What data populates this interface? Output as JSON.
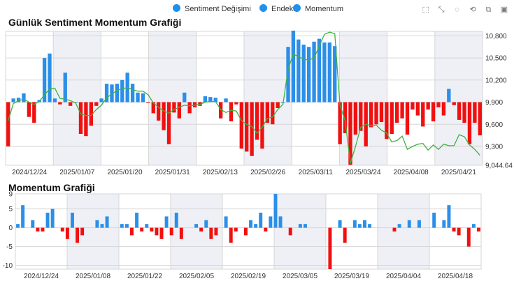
{
  "legend": {
    "items": [
      {
        "label": "Sentiment Değişimi",
        "color": "#1e90ee"
      },
      {
        "label": "Endeks",
        "color": "#1e90ee"
      },
      {
        "label": "Momentum",
        "color": "#1e90ee"
      }
    ]
  },
  "toolbox": {
    "icons": [
      "zoom-select-icon",
      "zoom-reset-icon",
      "brush-rect-icon",
      "brush-polygon-icon",
      "data-view-icon",
      "save-image-icon"
    ]
  },
  "colors": {
    "positive": "#2b8fe8",
    "negative": "#f01010",
    "line": "#3cb43c",
    "band": "#eef0f6",
    "grid": "#d6d6d6"
  },
  "chart_data": [
    {
      "type": "bar",
      "title": "Günlük Sentiment Momentum Grafiği",
      "x_tick_labels": [
        "2024/12/24",
        "2025/01/07",
        "2025/01/20",
        "2025/01/31",
        "2025/02/13",
        "2025/02/26",
        "2025/03/11",
        "2025/03/24",
        "2025/04/08",
        "2025/04/21"
      ],
      "y_tick_labels": [
        "10,800",
        "10,500",
        "10,200",
        "9,900",
        "9,600",
        "9,300",
        "9,044.64"
      ],
      "ylim": [
        9044.64,
        10860
      ],
      "baseline": 9900,
      "grid": true,
      "legend_position": "top",
      "series": [
        {
          "name": "Endeks",
          "type": "bar",
          "values": [
            9300,
            9950,
            9960,
            10020,
            9700,
            9620,
            9930,
            10500,
            10560,
            9950,
            9870,
            10300,
            9850,
            9900,
            9470,
            9440,
            9580,
            9850,
            9950,
            10150,
            10140,
            10150,
            10200,
            10300,
            10150,
            10030,
            10020,
            9890,
            9750,
            9650,
            9520,
            9330,
            9760,
            9680,
            10030,
            9750,
            9830,
            9850,
            9980,
            9970,
            9960,
            9680,
            9950,
            9640,
            9870,
            9270,
            9230,
            9170,
            9390,
            9270,
            9620,
            9600,
            9820,
            9900,
            10650,
            10870,
            10750,
            10680,
            10650,
            10720,
            10760,
            10710,
            10710,
            10660,
            9330,
            9480,
            9050,
            9460,
            9510,
            9300,
            9560,
            9600,
            9630,
            9400,
            9470,
            9620,
            9680,
            9460,
            9800,
            9720,
            9570,
            9800,
            9640,
            9830,
            9720,
            10080,
            9860,
            9660,
            9620,
            9330,
            9620,
            9450
          ]
        },
        {
          "name": "Sentiment Değişimi",
          "type": "line",
          "values": [
            9650,
            9880,
            9920,
            9940,
            9900,
            9870,
            9910,
            10000,
            10080,
            10090,
            9950,
            9940,
            9920,
            9890,
            9740,
            9720,
            9720,
            9800,
            9860,
            9960,
            10010,
            10060,
            10080,
            10100,
            10070,
            10050,
            10050,
            10000,
            9890,
            9830,
            9780,
            9750,
            9800,
            9830,
            9860,
            9850,
            9860,
            9870,
            9900,
            9910,
            9910,
            9800,
            9760,
            9790,
            9780,
            9650,
            9600,
            9570,
            9480,
            9560,
            9680,
            9700,
            9800,
            9870,
            10350,
            10550,
            10520,
            10480,
            10470,
            10500,
            10660,
            10820,
            10850,
            10830,
            9860,
            9650,
            9070,
            9300,
            9560,
            9600,
            9580,
            9590,
            9520,
            9480,
            9360,
            9380,
            9440,
            9260,
            9300,
            9330,
            9340,
            9250,
            9320,
            9260,
            9330,
            9310,
            9310,
            9460,
            9430,
            9320,
            9260,
            9180
          ]
        }
      ]
    },
    {
      "type": "bar",
      "title": "Momentum Grafiği",
      "x_tick_labels": [
        "2024/12/24",
        "2025/01/08",
        "2025/01/22",
        "2025/02/05",
        "2025/02/19",
        "2025/03/05",
        "2025/03/19",
        "2025/04/04",
        "2025/04/18"
      ],
      "y_tick_labels": [
        "9",
        "5",
        "0",
        "-5",
        "-10"
      ],
      "ylim": [
        -11,
        9
      ],
      "grid": true,
      "series": [
        {
          "name": "Momentum",
          "values": [
            1,
            6,
            0,
            2,
            -1,
            -1,
            4,
            5,
            0,
            -1,
            -3,
            4,
            -4,
            -2,
            0,
            0,
            2,
            1,
            3,
            0,
            0,
            1,
            1,
            -2,
            4,
            -1,
            1,
            -1,
            -2,
            -3,
            3,
            -2,
            4,
            -3,
            0,
            0,
            1,
            -1,
            2,
            -3,
            -2,
            0,
            3,
            -4,
            -1,
            0,
            -2,
            2,
            1,
            4,
            -1,
            3,
            9,
            3,
            0,
            -2,
            0,
            1,
            1,
            0,
            0,
            0,
            0,
            -11,
            0,
            2,
            -4,
            0,
            2,
            1,
            2,
            1,
            0,
            0,
            0,
            0,
            -1,
            1,
            0,
            2,
            0,
            2,
            0,
            0,
            4,
            0,
            2,
            6,
            -1,
            -2,
            0,
            -5,
            1,
            -1
          ]
        }
      ]
    }
  ]
}
